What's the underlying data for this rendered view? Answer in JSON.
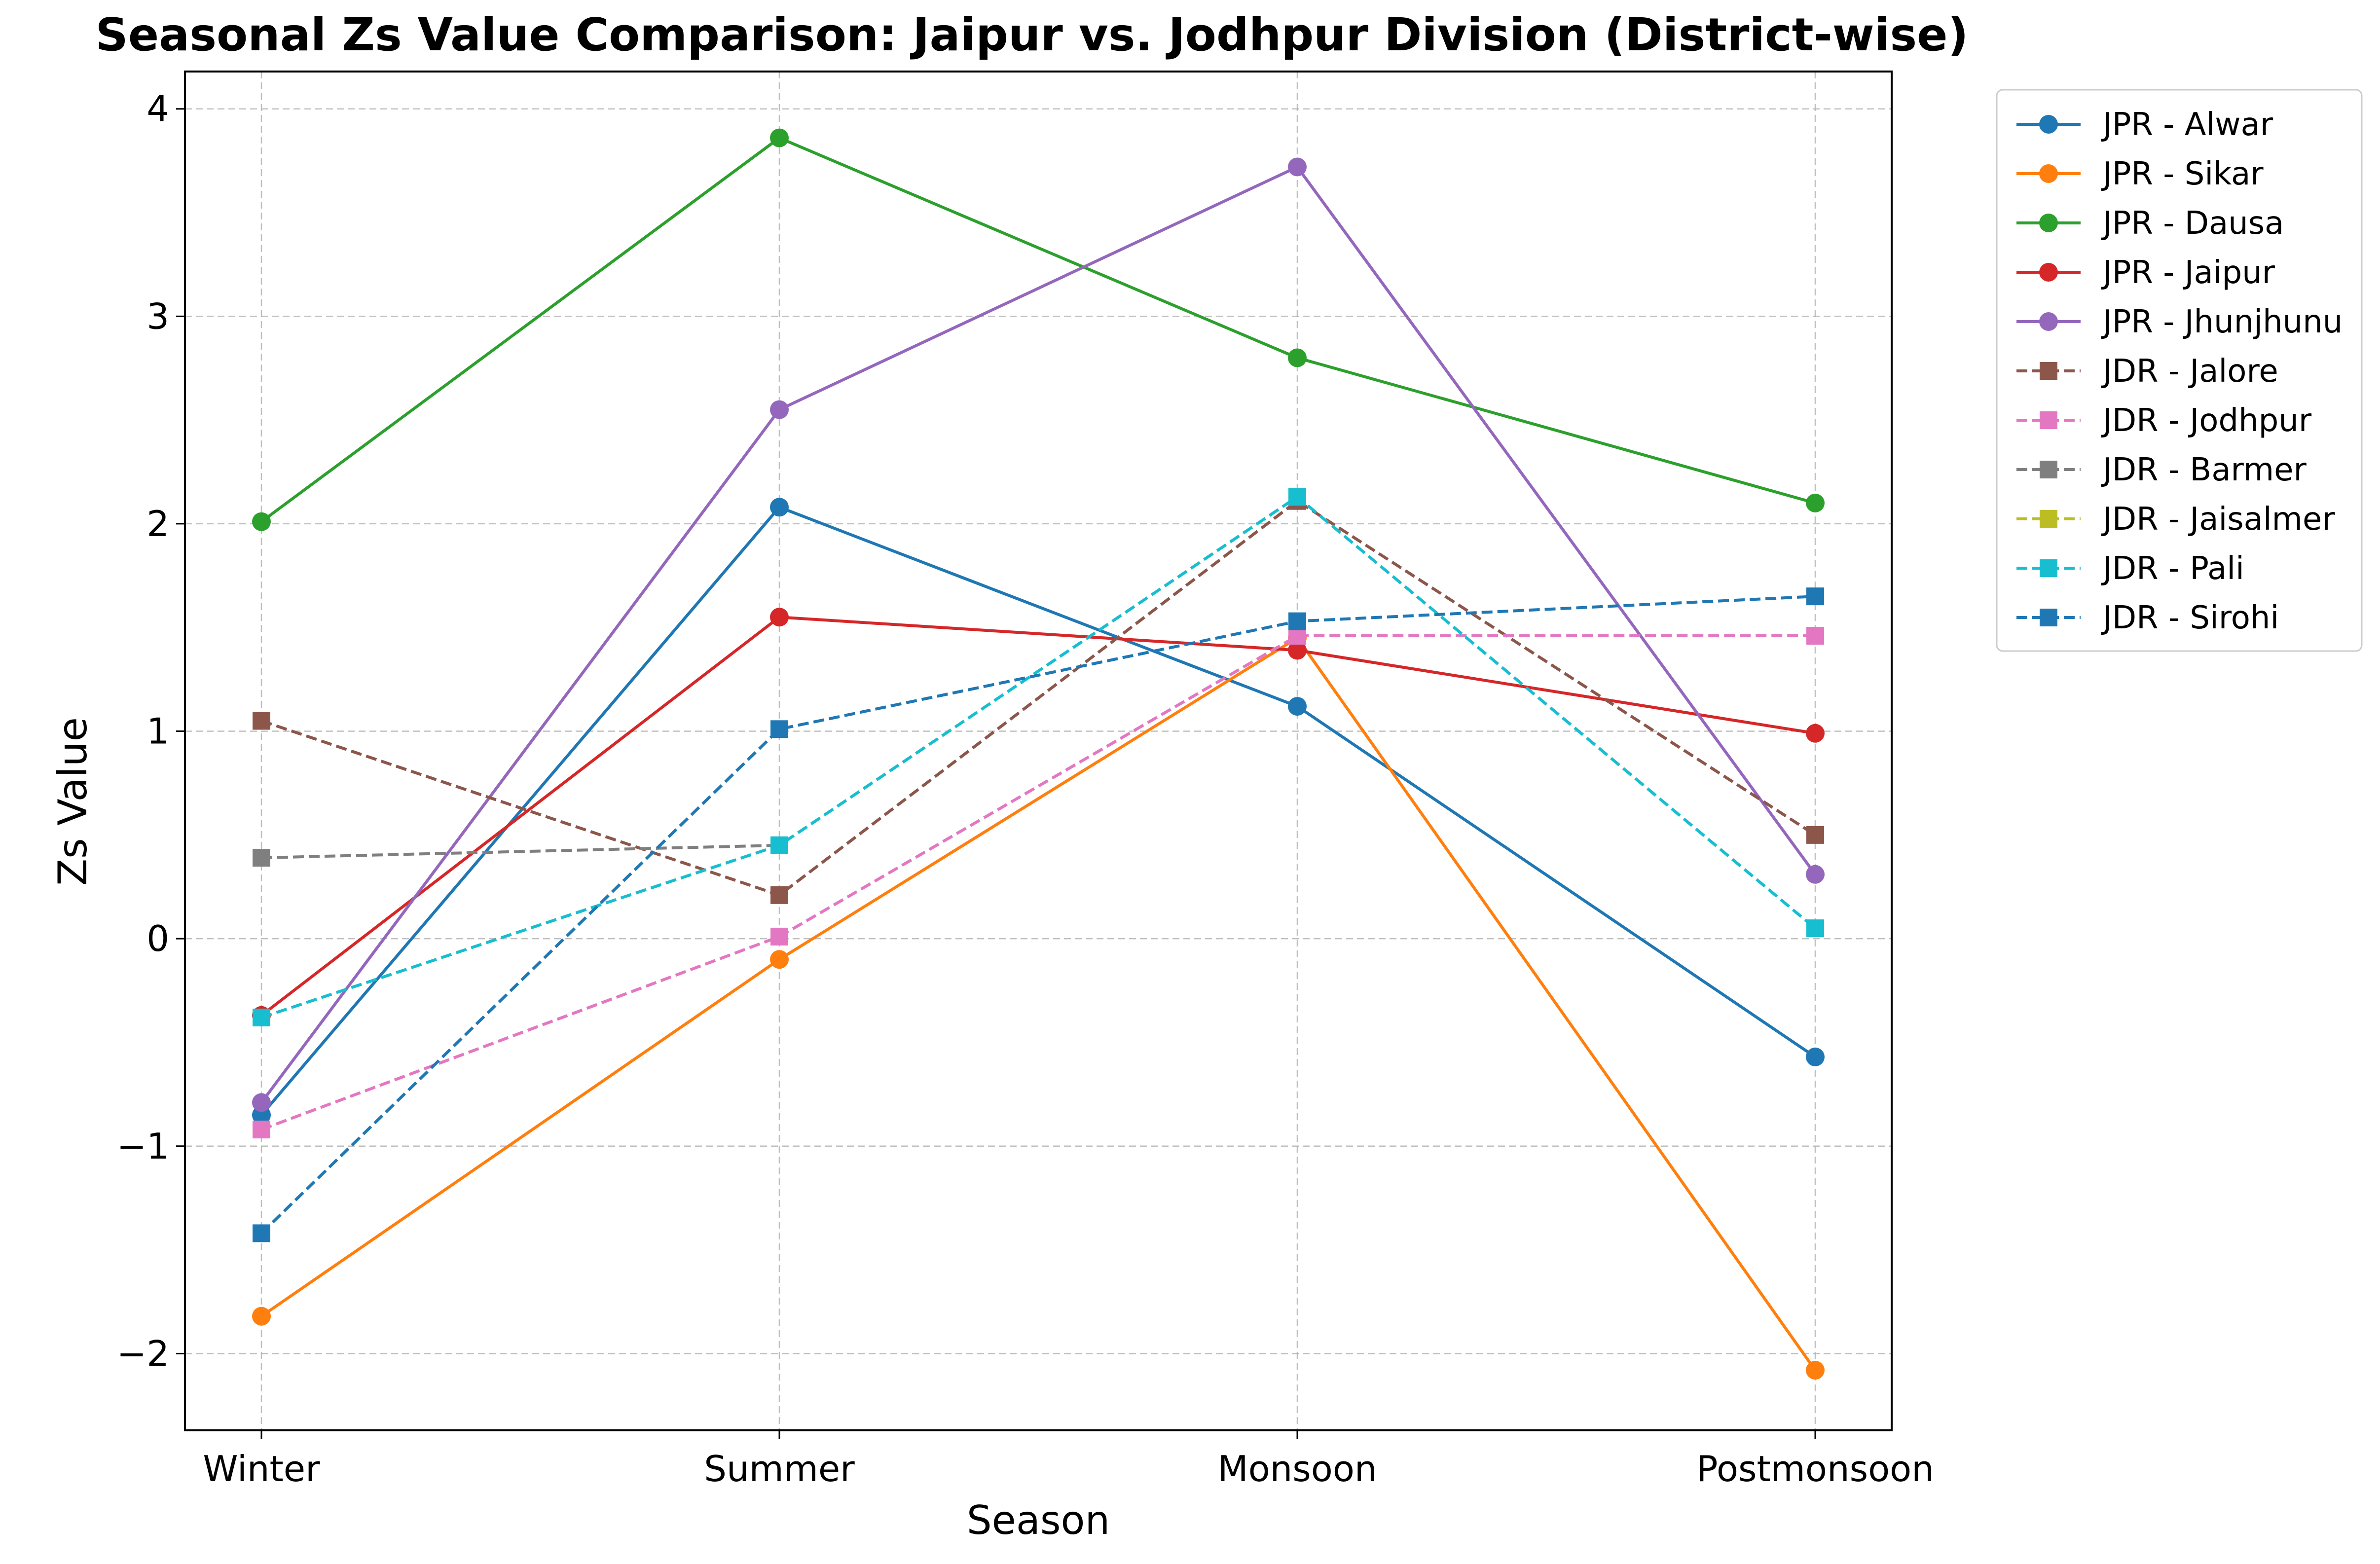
{
  "chart_data": {
    "type": "line",
    "title": "Seasonal Zs Value Comparison: Jaipur vs. Jodhpur Division (District-wise)",
    "xlabel": "Season",
    "ylabel": "Zs Value",
    "categories": [
      "Winter",
      "Summer",
      "Monsoon",
      "Postmonsoon"
    ],
    "ylim": [
      -2.37,
      4.18
    ],
    "yticks": [
      -2,
      -1,
      0,
      1,
      2,
      3,
      4
    ],
    "ytick_labels": [
      "−2",
      "−1",
      "0",
      "1",
      "2",
      "3",
      "4"
    ],
    "grid": true,
    "legend_position": "outside-right",
    "series": [
      {
        "name": "JPR - Alwar",
        "values": [
          -0.85,
          2.08,
          1.12,
          -0.57
        ],
        "color": "#1f77b4",
        "marker": "circle",
        "linestyle": "solid"
      },
      {
        "name": "JPR - Sikar",
        "values": [
          -1.82,
          -0.1,
          1.45,
          -2.08
        ],
        "color": "#ff7f0e",
        "marker": "circle",
        "linestyle": "solid"
      },
      {
        "name": "JPR - Dausa",
        "values": [
          2.01,
          3.86,
          2.8,
          2.1
        ],
        "color": "#2ca02c",
        "marker": "circle",
        "linestyle": "solid"
      },
      {
        "name": "JPR - Jaipur",
        "values": [
          -0.37,
          1.55,
          1.39,
          0.99
        ],
        "color": "#d62728",
        "marker": "circle",
        "linestyle": "solid"
      },
      {
        "name": "JPR - Jhunjhunu",
        "values": [
          -0.79,
          2.55,
          3.72,
          0.31
        ],
        "color": "#9467bd",
        "marker": "circle",
        "linestyle": "solid"
      },
      {
        "name": "JDR - Jalore",
        "values": [
          1.05,
          0.21,
          2.11,
          0.5
        ],
        "color": "#8c564b",
        "marker": "square",
        "linestyle": "dashed"
      },
      {
        "name": "JDR - Jodhpur",
        "values": [
          -0.92,
          0.01,
          1.46,
          1.46
        ],
        "color": "#e377c2",
        "marker": "square",
        "linestyle": "dashed"
      },
      {
        "name": "JDR - Barmer",
        "values": [
          0.39,
          0.45,
          null,
          null
        ],
        "color": "#7f7f7f",
        "marker": "square",
        "linestyle": "dashed"
      },
      {
        "name": "JDR - Jaisalmer",
        "values": [
          null,
          null,
          null,
          null
        ],
        "color": "#bcbd22",
        "marker": "square",
        "linestyle": "dashed"
      },
      {
        "name": "JDR - Pali",
        "values": [
          -0.38,
          0.45,
          2.13,
          0.05
        ],
        "color": "#17becf",
        "marker": "square",
        "linestyle": "dashed"
      },
      {
        "name": "JDR - Sirohi",
        "values": [
          -1.42,
          1.01,
          1.53,
          1.65
        ],
        "color": "#1f77b4",
        "marker": "square",
        "linestyle": "dashed"
      }
    ]
  }
}
